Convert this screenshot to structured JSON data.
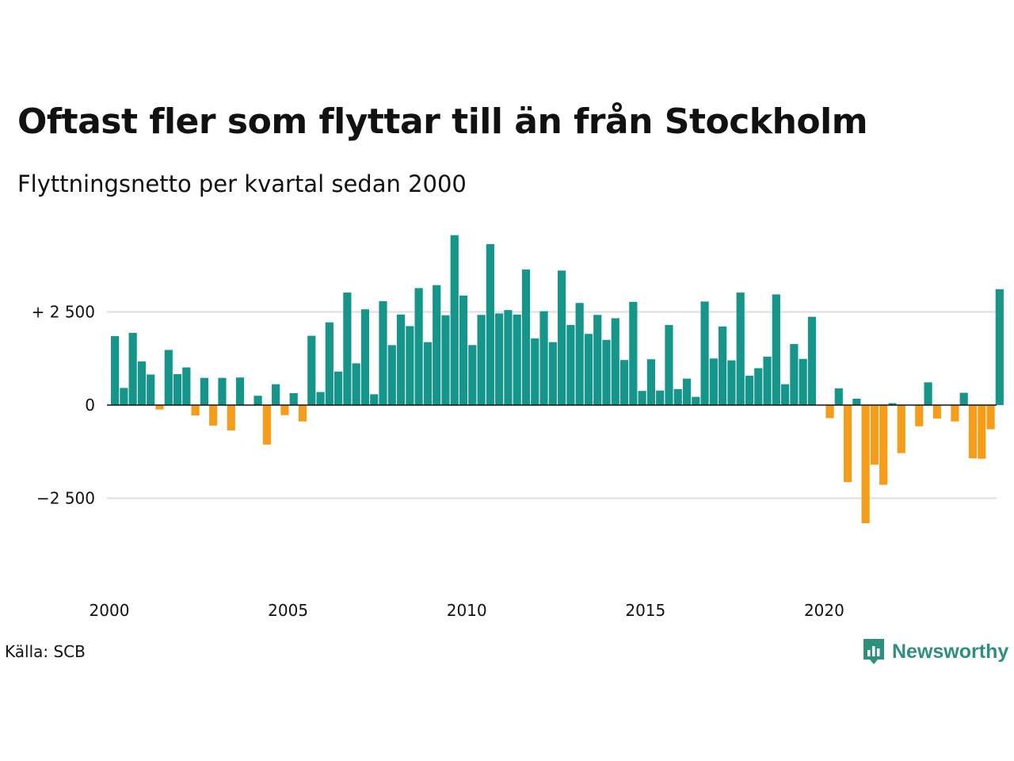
{
  "title": "Oftast fler som flyttar till än från Stockholm",
  "subtitle": "Flyttningsnetto per kvartal sedan 2000",
  "source": "Källa: SCB",
  "brand": "Newsworthy",
  "colors": {
    "positive": "#16968a",
    "negative": "#f59c1a",
    "grid": "#dddddd",
    "zero": "#111111",
    "brand": "#2f8f7e"
  },
  "chart_data": {
    "type": "bar",
    "title": "Oftast fler som flyttar till än från Stockholm",
    "subtitle": "Flyttningsnetto per kvartal sedan 2000",
    "xlabel": "",
    "ylabel": "",
    "x_start": 2000,
    "x_range": [
      2000,
      2024.75
    ],
    "ylim": [
      -4250,
      4700
    ],
    "grid": true,
    "x_ticks": [
      {
        "value": 2000,
        "label": "2000"
      },
      {
        "value": 2005,
        "label": "2005"
      },
      {
        "value": 2010,
        "label": "2010"
      },
      {
        "value": 2015,
        "label": "2015"
      },
      {
        "value": 2020,
        "label": "2020"
      }
    ],
    "y_ticks": [
      {
        "value": 2500,
        "label": "+ 2 500"
      },
      {
        "value": 0,
        "label": "0"
      },
      {
        "value": -2500,
        "label": "−2 500"
      }
    ],
    "values": [
      1850,
      460,
      1940,
      1170,
      820,
      -120,
      1480,
      830,
      1010,
      -280,
      730,
      -550,
      730,
      -680,
      740,
      0,
      250,
      -1060,
      560,
      -270,
      320,
      -440,
      1860,
      350,
      2220,
      900,
      3020,
      1120,
      2570,
      290,
      2790,
      1610,
      2430,
      2120,
      3140,
      1690,
      3220,
      2410,
      4560,
      2940,
      1610,
      2420,
      4320,
      2460,
      2550,
      2430,
      3640,
      1790,
      2520,
      1690,
      3610,
      2150,
      2740,
      1910,
      2420,
      1750,
      2330,
      1210,
      2770,
      380,
      1230,
      390,
      2150,
      430,
      710,
      220,
      2780,
      1250,
      2110,
      1200,
      3020,
      790,
      990,
      1300,
      2970,
      560,
      1640,
      1240,
      2370,
      0,
      -350,
      450,
      -2070,
      170,
      -3170,
      -1600,
      -2140,
      50,
      -1290,
      0,
      -570,
      610,
      -360,
      0,
      -440,
      330,
      -1430,
      -1440,
      -650,
      3110
    ]
  }
}
